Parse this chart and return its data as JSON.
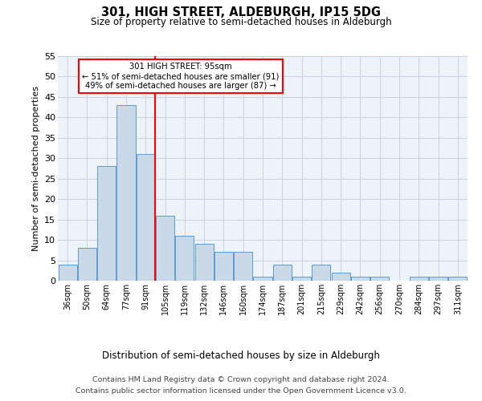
{
  "title": "301, HIGH STREET, ALDEBURGH, IP15 5DG",
  "subtitle": "Size of property relative to semi-detached houses in Aldeburgh",
  "xlabel": "Distribution of semi-detached houses by size in Aldeburgh",
  "ylabel": "Number of semi-detached properties",
  "categories": [
    "36sqm",
    "50sqm",
    "64sqm",
    "77sqm",
    "91sqm",
    "105sqm",
    "119sqm",
    "132sqm",
    "146sqm",
    "160sqm",
    "174sqm",
    "187sqm",
    "201sqm",
    "215sqm",
    "229sqm",
    "242sqm",
    "256sqm",
    "270sqm",
    "284sqm",
    "297sqm",
    "311sqm"
  ],
  "values": [
    4,
    8,
    28,
    43,
    31,
    16,
    11,
    9,
    7,
    7,
    1,
    4,
    1,
    4,
    2,
    1,
    1,
    0,
    1,
    1,
    1
  ],
  "bar_color": "#c9d9e8",
  "bar_edge_color": "#5b9bd5",
  "grid_color": "#c8d4e3",
  "background_color": "#eef3f9",
  "vline_x_index": 4.5,
  "vline_color": "red",
  "annotation_title": "301 HIGH STREET: 95sqm",
  "annotation_line1": "← 51% of semi-detached houses are smaller (91)",
  "annotation_line2": "49% of semi-detached houses are larger (87) →",
  "annotation_box_color": "white",
  "annotation_box_edge": "red",
  "ylim": [
    0,
    55
  ],
  "yticks": [
    0,
    5,
    10,
    15,
    20,
    25,
    30,
    35,
    40,
    45,
    50,
    55
  ],
  "footer_line1": "Contains HM Land Registry data © Crown copyright and database right 2024.",
  "footer_line2": "Contains public sector information licensed under the Open Government Licence v3.0."
}
